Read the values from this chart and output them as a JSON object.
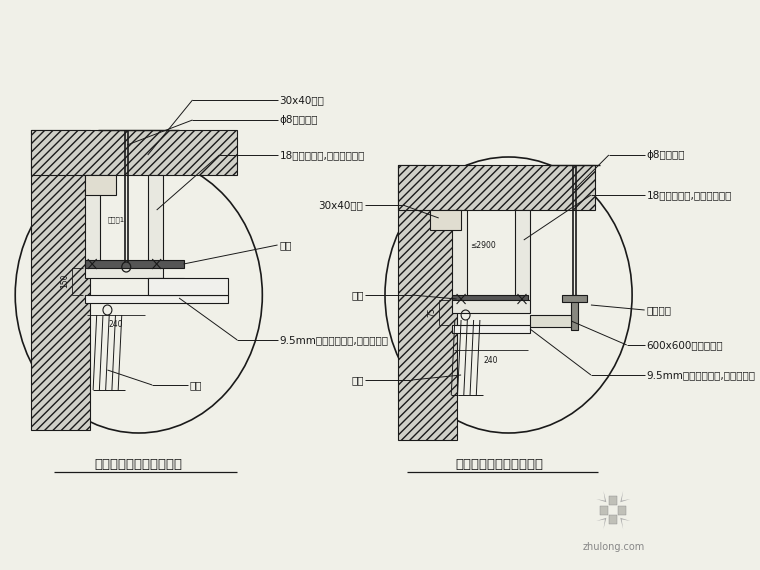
{
  "bg_color": "#f0f0e8",
  "line_color": "#1a1a1a",
  "title1": "石膏板吊顶窗帘盒剖面图",
  "title2": "矿棉板吊顶窗帘盒剖面图",
  "watermark": "zhulong.com"
}
